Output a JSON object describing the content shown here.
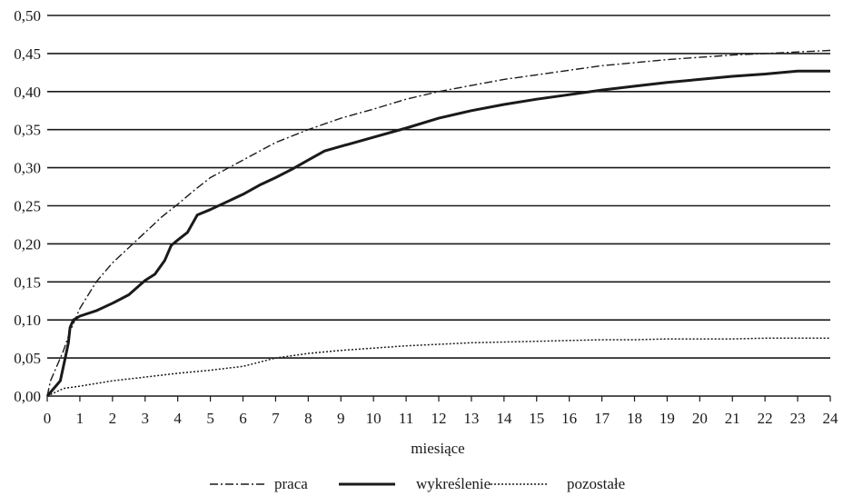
{
  "chart_data": {
    "type": "line",
    "title": "",
    "xlabel": "miesiące",
    "ylabel": "",
    "xlim": [
      0,
      24
    ],
    "ylim": [
      0,
      0.5
    ],
    "x_ticks": [
      "0",
      "1",
      "2",
      "3",
      "4",
      "5",
      "6",
      "7",
      "8",
      "9",
      "10",
      "11",
      "12",
      "13",
      "14",
      "15",
      "16",
      "17",
      "18",
      "19",
      "20",
      "21",
      "22",
      "23",
      "24"
    ],
    "y_ticks": [
      "0,00",
      "0,05",
      "0,10",
      "0,15",
      "0,20",
      "0,25",
      "0,30",
      "0,35",
      "0,40",
      "0,45",
      "0,50"
    ],
    "grid": "horizontal",
    "legend_position": "bottom",
    "series": [
      {
        "name": "praca",
        "style": "dash-dot",
        "color": "#1a1a1a",
        "points": [
          [
            0,
            0
          ],
          [
            0.1,
            0.02
          ],
          [
            0.3,
            0.04
          ],
          [
            0.5,
            0.06
          ],
          [
            0.7,
            0.085
          ],
          [
            1,
            0.115
          ],
          [
            1.5,
            0.15
          ],
          [
            2,
            0.175
          ],
          [
            2.5,
            0.195
          ],
          [
            3,
            0.215
          ],
          [
            3.5,
            0.235
          ],
          [
            4,
            0.252
          ],
          [
            4.5,
            0.27
          ],
          [
            5,
            0.287
          ],
          [
            6,
            0.31
          ],
          [
            7,
            0.333
          ],
          [
            8,
            0.35
          ],
          [
            9,
            0.365
          ],
          [
            10,
            0.377
          ],
          [
            11,
            0.39
          ],
          [
            12,
            0.4
          ],
          [
            13,
            0.408
          ],
          [
            14,
            0.416
          ],
          [
            15,
            0.422
          ],
          [
            16,
            0.428
          ],
          [
            17,
            0.434
          ],
          [
            18,
            0.438
          ],
          [
            19,
            0.442
          ],
          [
            20,
            0.445
          ],
          [
            21,
            0.448
          ],
          [
            22,
            0.45
          ],
          [
            23,
            0.452
          ],
          [
            24,
            0.454
          ]
        ]
      },
      {
        "name": "wykreślenie",
        "style": "solid-thick",
        "color": "#1a1a1a",
        "points": [
          [
            0,
            0
          ],
          [
            0.2,
            0.01
          ],
          [
            0.4,
            0.02
          ],
          [
            0.55,
            0.05
          ],
          [
            0.65,
            0.07
          ],
          [
            0.7,
            0.09
          ],
          [
            0.8,
            0.1
          ],
          [
            1,
            0.105
          ],
          [
            1.5,
            0.112
          ],
          [
            2,
            0.122
          ],
          [
            2.5,
            0.133
          ],
          [
            3,
            0.152
          ],
          [
            3.3,
            0.16
          ],
          [
            3.6,
            0.178
          ],
          [
            3.8,
            0.198
          ],
          [
            4,
            0.205
          ],
          [
            4.3,
            0.215
          ],
          [
            4.6,
            0.238
          ],
          [
            5,
            0.245
          ],
          [
            5.5,
            0.255
          ],
          [
            6,
            0.265
          ],
          [
            6.5,
            0.277
          ],
          [
            7,
            0.287
          ],
          [
            7.5,
            0.298
          ],
          [
            8,
            0.31
          ],
          [
            8.5,
            0.322
          ],
          [
            9,
            0.328
          ],
          [
            10,
            0.34
          ],
          [
            11,
            0.352
          ],
          [
            12,
            0.365
          ],
          [
            13,
            0.375
          ],
          [
            14,
            0.383
          ],
          [
            15,
            0.39
          ],
          [
            16,
            0.396
          ],
          [
            17,
            0.402
          ],
          [
            18,
            0.407
          ],
          [
            19,
            0.412
          ],
          [
            20,
            0.416
          ],
          [
            21,
            0.42
          ],
          [
            22,
            0.423
          ],
          [
            23,
            0.427
          ],
          [
            24,
            0.427
          ]
        ]
      },
      {
        "name": "pozostałe",
        "style": "dotted",
        "color": "#1a1a1a",
        "points": [
          [
            0,
            0
          ],
          [
            0.5,
            0.01
          ],
          [
            1,
            0.013
          ],
          [
            2,
            0.02
          ],
          [
            3,
            0.025
          ],
          [
            4,
            0.03
          ],
          [
            5,
            0.034
          ],
          [
            6,
            0.039
          ],
          [
            7,
            0.05
          ],
          [
            8,
            0.056
          ],
          [
            9,
            0.06
          ],
          [
            10,
            0.063
          ],
          [
            11,
            0.066
          ],
          [
            12,
            0.068
          ],
          [
            13,
            0.07
          ],
          [
            14,
            0.071
          ],
          [
            15,
            0.072
          ],
          [
            16,
            0.073
          ],
          [
            17,
            0.074
          ],
          [
            18,
            0.074
          ],
          [
            19,
            0.075
          ],
          [
            20,
            0.075
          ],
          [
            21,
            0.075
          ],
          [
            22,
            0.076
          ],
          [
            23,
            0.076
          ],
          [
            24,
            0.076
          ]
        ]
      }
    ]
  }
}
